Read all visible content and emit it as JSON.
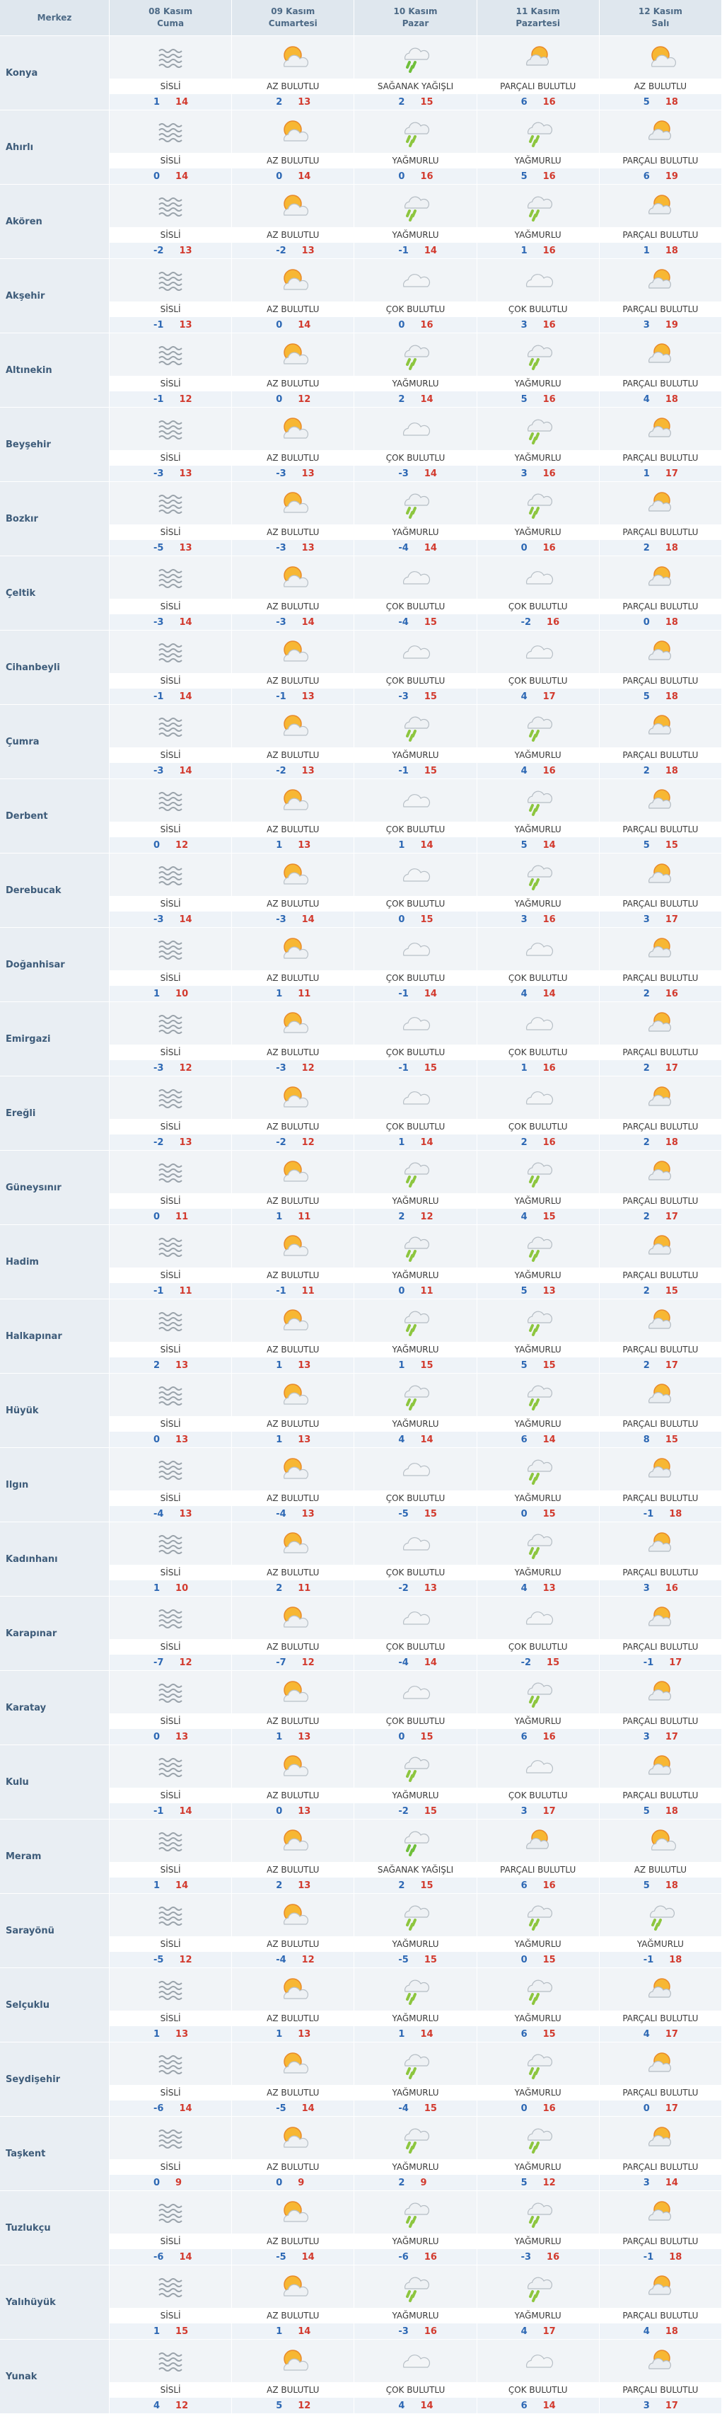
{
  "header": {
    "district": "Merkez",
    "days": [
      {
        "date": "08 Kasım",
        "day": "Cuma"
      },
      {
        "date": "09 Kasım",
        "day": "Cumartesi"
      },
      {
        "date": "10 Kasım",
        "day": "Pazar"
      },
      {
        "date": "11 Kasım",
        "day": "Pazartesi"
      },
      {
        "date": "12 Kasım",
        "day": "Salı"
      }
    ]
  },
  "rows": [
    {
      "name": "Konya",
      "days": [
        {
          "condition": "SİSLİ",
          "min": 1,
          "max": 14
        },
        {
          "condition": "AZ BULUTLU",
          "min": 2,
          "max": 13
        },
        {
          "condition": "SAĞANAK YAĞIŞLI",
          "min": 2,
          "max": 15
        },
        {
          "condition": "PARÇALI BULUTLU",
          "min": 6,
          "max": 16
        },
        {
          "condition": "AZ BULUTLU",
          "min": 5,
          "max": 18
        }
      ]
    },
    {
      "name": "Ahırlı",
      "days": [
        {
          "condition": "SİSLİ",
          "min": 0,
          "max": 14
        },
        {
          "condition": "AZ BULUTLU",
          "min": 0,
          "max": 14
        },
        {
          "condition": "YAĞMURLU",
          "min": 0,
          "max": 16
        },
        {
          "condition": "YAĞMURLU",
          "min": 5,
          "max": 16
        },
        {
          "condition": "PARÇALI BULUTLU",
          "min": 6,
          "max": 19
        }
      ]
    },
    {
      "name": "Akören",
      "days": [
        {
          "condition": "SİSLİ",
          "min": -2,
          "max": 13
        },
        {
          "condition": "AZ BULUTLU",
          "min": -2,
          "max": 13
        },
        {
          "condition": "YAĞMURLU",
          "min": -1,
          "max": 14
        },
        {
          "condition": "YAĞMURLU",
          "min": 1,
          "max": 16
        },
        {
          "condition": "PARÇALI BULUTLU",
          "min": 1,
          "max": 18
        }
      ]
    },
    {
      "name": "Akşehir",
      "days": [
        {
          "condition": "SİSLİ",
          "min": -1,
          "max": 13
        },
        {
          "condition": "AZ BULUTLU",
          "min": 0,
          "max": 14
        },
        {
          "condition": "ÇOK BULUTLU",
          "min": 0,
          "max": 16
        },
        {
          "condition": "ÇOK BULUTLU",
          "min": 3,
          "max": 16
        },
        {
          "condition": "PARÇALI BULUTLU",
          "min": 3,
          "max": 19
        }
      ]
    },
    {
      "name": "Altınekin",
      "days": [
        {
          "condition": "SİSLİ",
          "min": -1,
          "max": 12
        },
        {
          "condition": "AZ BULUTLU",
          "min": 0,
          "max": 12
        },
        {
          "condition": "YAĞMURLU",
          "min": 2,
          "max": 14
        },
        {
          "condition": "YAĞMURLU",
          "min": 5,
          "max": 16
        },
        {
          "condition": "PARÇALI BULUTLU",
          "min": 4,
          "max": 18
        }
      ]
    },
    {
      "name": "Beyşehir",
      "days": [
        {
          "condition": "SİSLİ",
          "min": -3,
          "max": 13
        },
        {
          "condition": "AZ BULUTLU",
          "min": -3,
          "max": 13
        },
        {
          "condition": "ÇOK BULUTLU",
          "min": -3,
          "max": 14
        },
        {
          "condition": "YAĞMURLU",
          "min": 3,
          "max": 16
        },
        {
          "condition": "PARÇALI BULUTLU",
          "min": 1,
          "max": 17
        }
      ]
    },
    {
      "name": "Bozkır",
      "days": [
        {
          "condition": "SİSLİ",
          "min": -5,
          "max": 13
        },
        {
          "condition": "AZ BULUTLU",
          "min": -3,
          "max": 13
        },
        {
          "condition": "YAĞMURLU",
          "min": -4,
          "max": 14
        },
        {
          "condition": "YAĞMURLU",
          "min": 0,
          "max": 16
        },
        {
          "condition": "PARÇALI BULUTLU",
          "min": 2,
          "max": 18
        }
      ]
    },
    {
      "name": "Çeltik",
      "days": [
        {
          "condition": "SİSLİ",
          "min": -3,
          "max": 14
        },
        {
          "condition": "AZ BULUTLU",
          "min": -3,
          "max": 14
        },
        {
          "condition": "ÇOK BULUTLU",
          "min": -4,
          "max": 15
        },
        {
          "condition": "ÇOK BULUTLU",
          "min": -2,
          "max": 16
        },
        {
          "condition": "PARÇALI BULUTLU",
          "min": 0,
          "max": 18
        }
      ]
    },
    {
      "name": "Cihanbeyli",
      "days": [
        {
          "condition": "SİSLİ",
          "min": -1,
          "max": 14
        },
        {
          "condition": "AZ BULUTLU",
          "min": -1,
          "max": 13
        },
        {
          "condition": "ÇOK BULUTLU",
          "min": -3,
          "max": 15
        },
        {
          "condition": "ÇOK BULUTLU",
          "min": 4,
          "max": 17
        },
        {
          "condition": "PARÇALI BULUTLU",
          "min": 5,
          "max": 18
        }
      ]
    },
    {
      "name": "Çumra",
      "days": [
        {
          "condition": "SİSLİ",
          "min": -3,
          "max": 14
        },
        {
          "condition": "AZ BULUTLU",
          "min": -2,
          "max": 13
        },
        {
          "condition": "YAĞMURLU",
          "min": -1,
          "max": 15
        },
        {
          "condition": "YAĞMURLU",
          "min": 4,
          "max": 16
        },
        {
          "condition": "PARÇALI BULUTLU",
          "min": 2,
          "max": 18
        }
      ]
    },
    {
      "name": "Derbent",
      "days": [
        {
          "condition": "SİSLİ",
          "min": 0,
          "max": 12
        },
        {
          "condition": "AZ BULUTLU",
          "min": 1,
          "max": 13
        },
        {
          "condition": "ÇOK BULUTLU",
          "min": 1,
          "max": 14
        },
        {
          "condition": "YAĞMURLU",
          "min": 5,
          "max": 14
        },
        {
          "condition": "PARÇALI BULUTLU",
          "min": 5,
          "max": 15
        }
      ]
    },
    {
      "name": "Derebucak",
      "days": [
        {
          "condition": "SİSLİ",
          "min": -3,
          "max": 14
        },
        {
          "condition": "AZ BULUTLU",
          "min": -3,
          "max": 14
        },
        {
          "condition": "ÇOK BULUTLU",
          "min": 0,
          "max": 15
        },
        {
          "condition": "YAĞMURLU",
          "min": 3,
          "max": 16
        },
        {
          "condition": "PARÇALI BULUTLU",
          "min": 3,
          "max": 17
        }
      ]
    },
    {
      "name": "Doğanhisar",
      "days": [
        {
          "condition": "SİSLİ",
          "min": 1,
          "max": 10
        },
        {
          "condition": "AZ BULUTLU",
          "min": 1,
          "max": 11
        },
        {
          "condition": "ÇOK BULUTLU",
          "min": -1,
          "max": 14
        },
        {
          "condition": "ÇOK BULUTLU",
          "min": 4,
          "max": 14
        },
        {
          "condition": "PARÇALI BULUTLU",
          "min": 2,
          "max": 16
        }
      ]
    },
    {
      "name": "Emirgazi",
      "days": [
        {
          "condition": "SİSLİ",
          "min": -3,
          "max": 12
        },
        {
          "condition": "AZ BULUTLU",
          "min": -3,
          "max": 12
        },
        {
          "condition": "ÇOK BULUTLU",
          "min": -1,
          "max": 15
        },
        {
          "condition": "ÇOK BULUTLU",
          "min": 1,
          "max": 16
        },
        {
          "condition": "PARÇALI BULUTLU",
          "min": 2,
          "max": 17
        }
      ]
    },
    {
      "name": "Ereğli",
      "days": [
        {
          "condition": "SİSLİ",
          "min": -2,
          "max": 13
        },
        {
          "condition": "AZ BULUTLU",
          "min": -2,
          "max": 12
        },
        {
          "condition": "ÇOK BULUTLU",
          "min": 1,
          "max": 14
        },
        {
          "condition": "ÇOK BULUTLU",
          "min": 2,
          "max": 16
        },
        {
          "condition": "PARÇALI BULUTLU",
          "min": 2,
          "max": 18
        }
      ]
    },
    {
      "name": "Güneysınır",
      "days": [
        {
          "condition": "SİSLİ",
          "min": 0,
          "max": 11
        },
        {
          "condition": "AZ BULUTLU",
          "min": 1,
          "max": 11
        },
        {
          "condition": "YAĞMURLU",
          "min": 2,
          "max": 12
        },
        {
          "condition": "YAĞMURLU",
          "min": 4,
          "max": 15
        },
        {
          "condition": "PARÇALI BULUTLU",
          "min": 2,
          "max": 17
        }
      ]
    },
    {
      "name": "Hadim",
      "days": [
        {
          "condition": "SİSLİ",
          "min": -1,
          "max": 11
        },
        {
          "condition": "AZ BULUTLU",
          "min": -1,
          "max": 11
        },
        {
          "condition": "YAĞMURLU",
          "min": 0,
          "max": 11
        },
        {
          "condition": "YAĞMURLU",
          "min": 5,
          "max": 13
        },
        {
          "condition": "PARÇALI BULUTLU",
          "min": 2,
          "max": 15
        }
      ]
    },
    {
      "name": "Halkapınar",
      "days": [
        {
          "condition": "SİSLİ",
          "min": 2,
          "max": 13
        },
        {
          "condition": "AZ BULUTLU",
          "min": 1,
          "max": 13
        },
        {
          "condition": "YAĞMURLU",
          "min": 1,
          "max": 15
        },
        {
          "condition": "YAĞMURLU",
          "min": 5,
          "max": 15
        },
        {
          "condition": "PARÇALI BULUTLU",
          "min": 2,
          "max": 17
        }
      ]
    },
    {
      "name": "Hüyük",
      "days": [
        {
          "condition": "SİSLİ",
          "min": 0,
          "max": 13
        },
        {
          "condition": "AZ BULUTLU",
          "min": 1,
          "max": 13
        },
        {
          "condition": "YAĞMURLU",
          "min": 4,
          "max": 14
        },
        {
          "condition": "YAĞMURLU",
          "min": 6,
          "max": 14
        },
        {
          "condition": "PARÇALI BULUTLU",
          "min": 8,
          "max": 15
        }
      ]
    },
    {
      "name": "Ilgın",
      "days": [
        {
          "condition": "SİSLİ",
          "min": -4,
          "max": 13
        },
        {
          "condition": "AZ BULUTLU",
          "min": -4,
          "max": 13
        },
        {
          "condition": "ÇOK BULUTLU",
          "min": -5,
          "max": 15
        },
        {
          "condition": "YAĞMURLU",
          "min": 0,
          "max": 15
        },
        {
          "condition": "PARÇALI BULUTLU",
          "min": -1,
          "max": 18
        }
      ]
    },
    {
      "name": "Kadınhanı",
      "days": [
        {
          "condition": "SİSLİ",
          "min": 1,
          "max": 10
        },
        {
          "condition": "AZ BULUTLU",
          "min": 2,
          "max": 11
        },
        {
          "condition": "ÇOK BULUTLU",
          "min": -2,
          "max": 13
        },
        {
          "condition": "YAĞMURLU",
          "min": 4,
          "max": 13
        },
        {
          "condition": "PARÇALI BULUTLU",
          "min": 3,
          "max": 16
        }
      ]
    },
    {
      "name": "Karapınar",
      "days": [
        {
          "condition": "SİSLİ",
          "min": -7,
          "max": 12
        },
        {
          "condition": "AZ BULUTLU",
          "min": -7,
          "max": 12
        },
        {
          "condition": "ÇOK BULUTLU",
          "min": -4,
          "max": 14
        },
        {
          "condition": "ÇOK BULUTLU",
          "min": -2,
          "max": 15
        },
        {
          "condition": "PARÇALI BULUTLU",
          "min": -1,
          "max": 17
        }
      ]
    },
    {
      "name": "Karatay",
      "days": [
        {
          "condition": "SİSLİ",
          "min": 0,
          "max": 13
        },
        {
          "condition": "AZ BULUTLU",
          "min": 1,
          "max": 13
        },
        {
          "condition": "ÇOK BULUTLU",
          "min": 0,
          "max": 15
        },
        {
          "condition": "YAĞMURLU",
          "min": 6,
          "max": 16
        },
        {
          "condition": "PARÇALI BULUTLU",
          "min": 3,
          "max": 17
        }
      ]
    },
    {
      "name": "Kulu",
      "days": [
        {
          "condition": "SİSLİ",
          "min": -1,
          "max": 14
        },
        {
          "condition": "AZ BULUTLU",
          "min": 0,
          "max": 13
        },
        {
          "condition": "YAĞMURLU",
          "min": -2,
          "max": 15
        },
        {
          "condition": "ÇOK BULUTLU",
          "min": 3,
          "max": 17
        },
        {
          "condition": "PARÇALI BULUTLU",
          "min": 5,
          "max": 18
        }
      ]
    },
    {
      "name": "Meram",
      "days": [
        {
          "condition": "SİSLİ",
          "min": 1,
          "max": 14
        },
        {
          "condition": "AZ BULUTLU",
          "min": 2,
          "max": 13
        },
        {
          "condition": "SAĞANAK YAĞIŞLI",
          "min": 2,
          "max": 15
        },
        {
          "condition": "PARÇALI BULUTLU",
          "min": 6,
          "max": 16
        },
        {
          "condition": "AZ BULUTLU",
          "min": 5,
          "max": 18
        }
      ]
    },
    {
      "name": "Sarayönü",
      "days": [
        {
          "condition": "SİSLİ",
          "min": -5,
          "max": 12
        },
        {
          "condition": "AZ BULUTLU",
          "min": -4,
          "max": 12
        },
        {
          "condition": "YAĞMURLU",
          "min": -5,
          "max": 15
        },
        {
          "condition": "YAĞMURLU",
          "min": 0,
          "max": 15
        },
        {
          "condition": "YAĞMURLU",
          "min": -1,
          "max": 18
        }
      ]
    },
    {
      "name": "Selçuklu",
      "days": [
        {
          "condition": "SİSLİ",
          "min": 1,
          "max": 13
        },
        {
          "condition": "AZ BULUTLU",
          "min": 1,
          "max": 13
        },
        {
          "condition": "YAĞMURLU",
          "min": 1,
          "max": 14
        },
        {
          "condition": "YAĞMURLU",
          "min": 6,
          "max": 15
        },
        {
          "condition": "PARÇALI BULUTLU",
          "min": 4,
          "max": 17
        }
      ]
    },
    {
      "name": "Seydişehir",
      "days": [
        {
          "condition": "SİSLİ",
          "min": -6,
          "max": 14
        },
        {
          "condition": "AZ BULUTLU",
          "min": -5,
          "max": 14
        },
        {
          "condition": "YAĞMURLU",
          "min": -4,
          "max": 15
        },
        {
          "condition": "YAĞMURLU",
          "min": 0,
          "max": 16
        },
        {
          "condition": "PARÇALI BULUTLU",
          "min": 0,
          "max": 17
        }
      ]
    },
    {
      "name": "Taşkent",
      "days": [
        {
          "condition": "SİSLİ",
          "min": 0,
          "max": 9
        },
        {
          "condition": "AZ BULUTLU",
          "min": 0,
          "max": 9
        },
        {
          "condition": "YAĞMURLU",
          "min": 2,
          "max": 9
        },
        {
          "condition": "YAĞMURLU",
          "min": 5,
          "max": 12
        },
        {
          "condition": "PARÇALI BULUTLU",
          "min": 3,
          "max": 14
        }
      ]
    },
    {
      "name": "Tuzlukçu",
      "days": [
        {
          "condition": "SİSLİ",
          "min": -6,
          "max": 14
        },
        {
          "condition": "AZ BULUTLU",
          "min": -5,
          "max": 14
        },
        {
          "condition": "YAĞMURLU",
          "min": -6,
          "max": 16
        },
        {
          "condition": "YAĞMURLU",
          "min": -3,
          "max": 16
        },
        {
          "condition": "PARÇALI BULUTLU",
          "min": -1,
          "max": 18
        }
      ]
    },
    {
      "name": "Yalıhüyük",
      "days": [
        {
          "condition": "SİSLİ",
          "min": 1,
          "max": 15
        },
        {
          "condition": "AZ BULUTLU",
          "min": 1,
          "max": 14
        },
        {
          "condition": "YAĞMURLU",
          "min": -3,
          "max": 16
        },
        {
          "condition": "YAĞMURLU",
          "min": 4,
          "max": 17
        },
        {
          "condition": "PARÇALI BULUTLU",
          "min": 4,
          "max": 18
        }
      ]
    },
    {
      "name": "Yunak",
      "days": [
        {
          "condition": "SİSLİ",
          "min": 4,
          "max": 12
        },
        {
          "condition": "AZ BULUTLU",
          "min": 5,
          "max": 12
        },
        {
          "condition": "ÇOK BULUTLU",
          "min": 4,
          "max": 14
        },
        {
          "condition": "ÇOK BULUTLU",
          "min": 6,
          "max": 14
        },
        {
          "condition": "PARÇALI BULUTLU",
          "min": 3,
          "max": 17
        }
      ]
    }
  ]
}
